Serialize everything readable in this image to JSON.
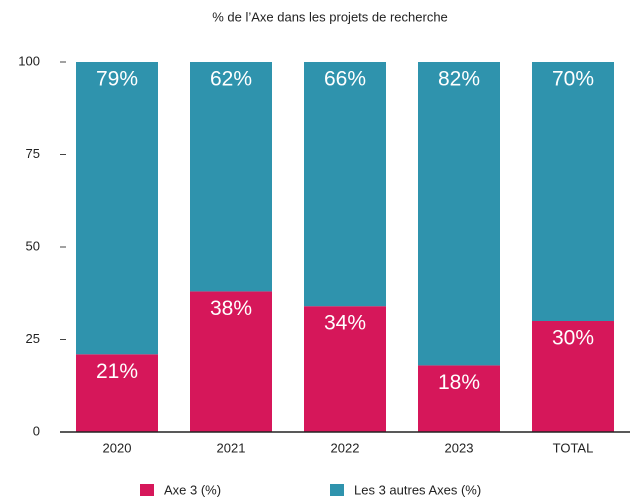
{
  "chart_data": {
    "type": "stacked_bar",
    "title": "% de l’Axe dans les projets de recherche",
    "categories": [
      "2020",
      "2021",
      "2022",
      "2023",
      "TOTAL"
    ],
    "series": [
      {
        "name": "Axe 3 (%)",
        "color": "#d6175a",
        "values": [
          21,
          38,
          34,
          18,
          30
        ],
        "value_labels": [
          "21%",
          "38%",
          "34%",
          "18%",
          "30%"
        ]
      },
      {
        "name": "Les 3 autres Axes (%)",
        "color": "#2f93ad",
        "values": [
          79,
          62,
          66,
          82,
          70
        ],
        "value_labels": [
          "79%",
          "62%",
          "66%",
          "82%",
          "70%"
        ]
      }
    ],
    "ylim": [
      0,
      100
    ],
    "yticks": [
      0,
      25,
      50,
      75,
      100
    ],
    "grid": false,
    "legend": "bottom"
  }
}
